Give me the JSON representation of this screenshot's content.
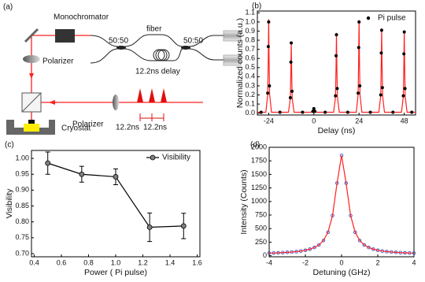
{
  "diagram": {
    "panel_label": "(a)",
    "monochromator": "Monochromator",
    "fiber": "fiber",
    "coupler_1": "50:50",
    "coupler_2": "50:50",
    "delay": "12.2ns delay",
    "polarizer_1": "Polarizer",
    "polarizer_2": "Polarizer",
    "spacing_1": "12.2ns",
    "spacing_2": "12.2ns",
    "cryostat": "Cryostat"
  },
  "chart_data": [
    {
      "type": "scatter",
      "panel_label": "(b)",
      "xlabel": "Delay (ns)",
      "ylabel": "Normalized counts (a.u.)",
      "xlim": [
        -30,
        54
      ],
      "xticks": [
        -24,
        0,
        24,
        48
      ],
      "ylim": [
        -0.02,
        1.12
      ],
      "yticks": [
        {
          "value": 0,
          "label": "0.0"
        },
        0.1,
        0.2,
        0.3,
        0.4,
        0.5,
        0.6,
        0.7,
        0.8,
        0.9,
        {
          "value": 1,
          "label": "1.0"
        },
        1.1
      ],
      "legend": "upper right",
      "series": [
        {
          "color": "#ff2020",
          "line": true,
          "x": [
            -30,
            -25.5,
            -24.5,
            -24.2,
            -24,
            -23.8,
            -23.5,
            -22.5,
            -13.5,
            -12.5,
            -12.2,
            -12,
            -11.8,
            -11.5,
            -10.5,
            -1.5,
            0,
            1.5,
            10.5,
            11.5,
            11.8,
            12,
            12.2,
            12.5,
            13.5,
            22.5,
            23.5,
            23.8,
            24,
            24.2,
            24.5,
            25.5,
            34.5,
            35.5,
            35.8,
            36,
            36.2,
            36.5,
            37.5,
            46.5,
            47.5,
            47.8,
            48,
            48.2,
            48.5,
            49.5,
            54
          ],
          "values": [
            0.01,
            0.01,
            0.21,
            0.62,
            1.03,
            0.62,
            0.21,
            0.01,
            0.01,
            0.16,
            0.47,
            0.78,
            0.47,
            0.16,
            0.01,
            0.01,
            0.05,
            0.01,
            0.01,
            0.18,
            0.53,
            0.88,
            0.53,
            0.18,
            0.01,
            0.01,
            0.2,
            0.61,
            1.02,
            0.61,
            0.2,
            0.01,
            0.01,
            0.19,
            0.56,
            0.93,
            0.56,
            0.19,
            0.01,
            0.01,
            0.18,
            0.55,
            0.91,
            0.55,
            0.18,
            0.01,
            0.01
          ]
        },
        {
          "name": "Pi pulse",
          "color": "#000000",
          "marker": "circle",
          "x": [
            -24.5,
            -24.2,
            -24,
            -23.6,
            -12.5,
            -12.2,
            -12,
            -11.6,
            -0.5,
            0,
            0.5,
            11.5,
            11.8,
            12,
            12.4,
            23.5,
            23.8,
            24,
            24.4,
            35.5,
            35.8,
            36,
            36.4,
            47.5,
            47.8,
            48,
            48.4,
            -28,
            -18,
            -6,
            6,
            18,
            30,
            42,
            52
          ],
          "values": [
            0.22,
            0.73,
            1.0,
            0.3,
            0.17,
            0.56,
            0.77,
            0.24,
            0.02,
            0.05,
            0.02,
            0.19,
            0.63,
            0.86,
            0.27,
            0.22,
            0.72,
            1.0,
            0.3,
            0.2,
            0.66,
            0.91,
            0.28,
            0.19,
            0.65,
            0.89,
            0.27,
            0.01,
            0.01,
            0.01,
            0.01,
            0.01,
            0.01,
            0.01,
            0.01
          ]
        }
      ]
    },
    {
      "type": "line",
      "panel_label": "(c)",
      "xlabel": "Power ( Pi pulse)",
      "ylabel": "Visibility",
      "xlim": [
        0.38,
        1.62
      ],
      "xticks": [
        0.4,
        0.6,
        0.8,
        {
          "value": 1,
          "label": "1.0"
        },
        1.2,
        1.4,
        1.6
      ],
      "ylim": [
        0.69,
        1.025
      ],
      "yticks": [
        {
          "value": 0.7,
          "label": "0.70"
        },
        0.75,
        {
          "value": 0.8,
          "label": "0.80"
        },
        0.85,
        {
          "value": 0.9,
          "label": "0.90"
        },
        0.95,
        {
          "value": 1,
          "label": "1.00"
        }
      ],
      "legend": "upper right",
      "series": [
        {
          "name": "Visibility",
          "color": "#000000",
          "marker_color": "#808080",
          "line": true,
          "marker": "circle",
          "x": [
            0.5,
            0.75,
            1.0,
            1.25,
            1.5
          ],
          "values": [
            0.985,
            0.95,
            0.942,
            0.783,
            0.787
          ],
          "errors": [
            0.035,
            0.025,
            0.025,
            0.045,
            0.04
          ]
        }
      ]
    },
    {
      "type": "scatter",
      "panel_label": "(d)",
      "xlabel": "Detuning (GHz)",
      "ylabel": "Intensity (Counts)",
      "xlim": [
        -4,
        4
      ],
      "xticks": [
        -4,
        -2,
        0,
        2,
        4
      ],
      "ylim": [
        -20,
        2000
      ],
      "yticks": [
        0,
        250,
        500,
        750,
        1000,
        1250,
        1500,
        1750,
        2000
      ],
      "x": [
        -4,
        -3.75,
        -3.5,
        -3.25,
        -3,
        -2.75,
        -2.5,
        -2.25,
        -2,
        -1.75,
        -1.5,
        -1.25,
        -1,
        -0.75,
        -0.5,
        -0.25,
        0,
        0.25,
        0.5,
        0.75,
        1,
        1.25,
        1.5,
        1.75,
        2,
        2.25,
        2.5,
        2.75,
        3,
        3.25,
        3.5,
        3.75,
        4
      ],
      "series": [
        {
          "color": "#2040c0",
          "marker": "open-circle",
          "values": [
            48,
            50,
            53,
            57,
            62,
            68,
            75,
            86,
            100,
            120,
            151,
            199,
            281,
            433,
            740,
            1339,
            1850,
            1339,
            740,
            433,
            281,
            199,
            151,
            120,
            100,
            86,
            75,
            68,
            62,
            57,
            53,
            50,
            48
          ]
        },
        {
          "color": "#ff2020",
          "line": true,
          "values": [
            48,
            50,
            53,
            57,
            62,
            68,
            75,
            86,
            100,
            120,
            151,
            199,
            281,
            433,
            740,
            1339,
            1850,
            1339,
            740,
            433,
            281,
            199,
            151,
            120,
            100,
            86,
            75,
            68,
            62,
            57,
            53,
            50,
            48
          ]
        }
      ]
    }
  ]
}
